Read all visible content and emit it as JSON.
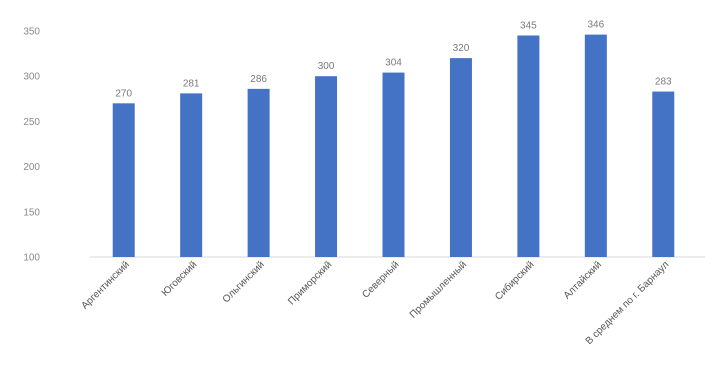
{
  "chart_data": {
    "type": "bar",
    "categories": [
      "Аргентинский",
      "Юговский",
      "Ольгинский",
      "Приморский",
      "Северный",
      "Промышленный",
      "Сибирский",
      "Алтайский",
      "В среднем по г. Барнаул"
    ],
    "values": [
      270,
      281,
      286,
      300,
      304,
      320,
      345,
      346,
      283
    ],
    "data_labels": [
      "270",
      "281",
      "286",
      "300",
      "304",
      "320",
      "345",
      "346",
      "283"
    ],
    "yticks": [
      "100",
      "150",
      "200",
      "250",
      "300",
      "350"
    ],
    "ylim": [
      100,
      350
    ],
    "bar_color": "#4472c4",
    "grid": false,
    "legend": false,
    "title": "",
    "xlabel": "",
    "ylabel": ""
  }
}
